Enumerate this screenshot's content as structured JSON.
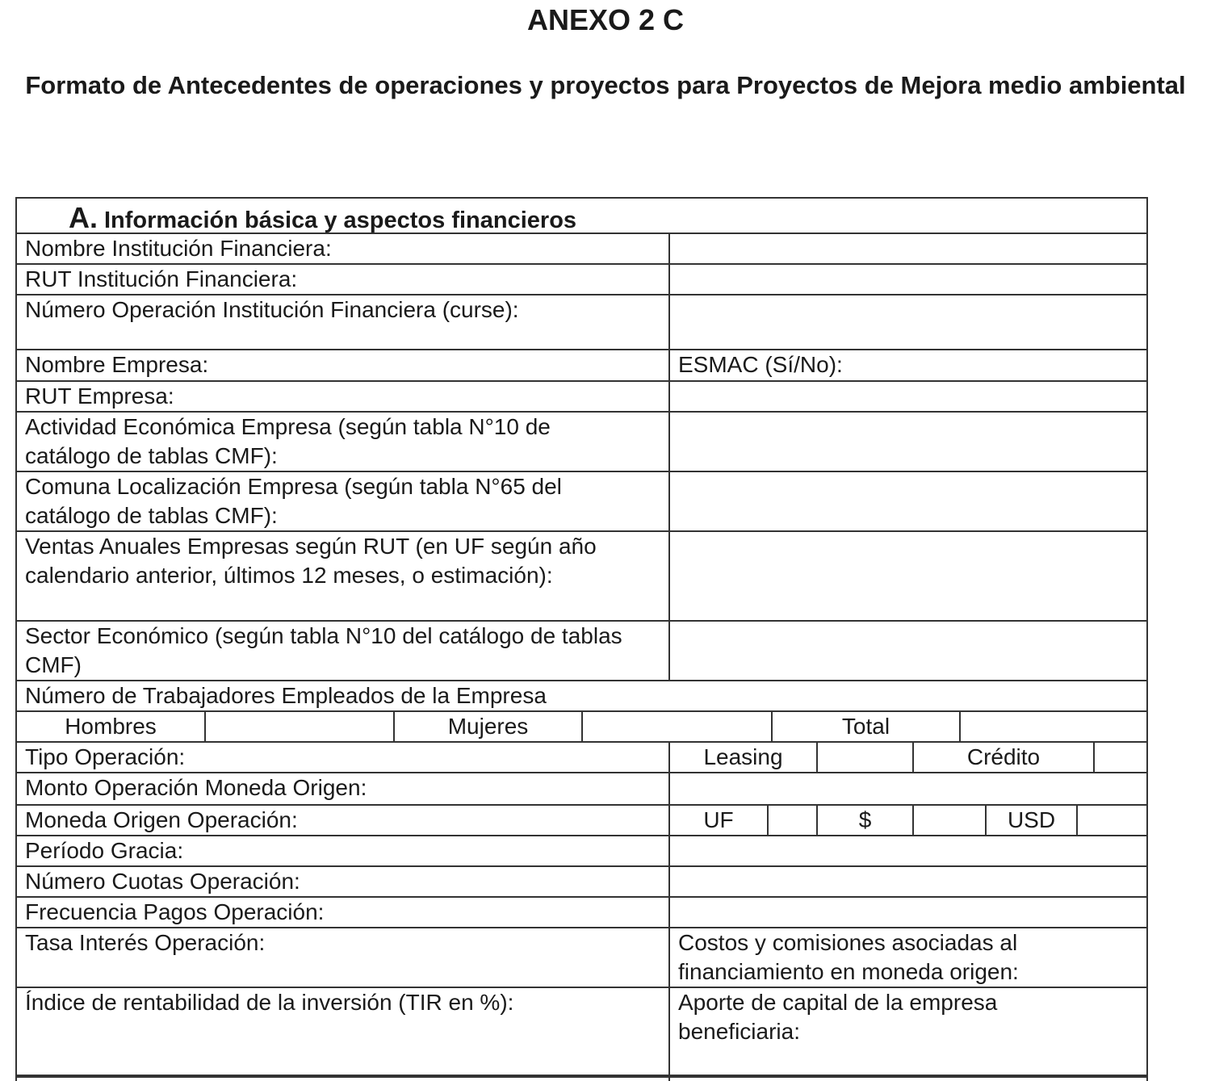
{
  "title": "ANEXO 2 C",
  "subtitle": "Formato de Antecedentes de operaciones y proyectos para Proyectos de Mejora medio ambiental",
  "section": {
    "letter": "A.",
    "title": "Información básica y aspectos financieros"
  },
  "rows": {
    "nombre_if": "Nombre Institución Financiera:",
    "rut_if": "RUT Institución Financiera:",
    "numero_op": "Número Operación Institución Financiera (curse):",
    "nombre_empresa": "Nombre Empresa:",
    "esmac": "ESMAC (Sí/No):",
    "rut_empresa": "RUT Empresa:",
    "actividad": "Actividad Económica Empresa (según tabla N°10 de catálogo de tablas CMF):",
    "comuna": "Comuna Localización Empresa (según tabla N°65 del catálogo de tablas CMF):",
    "ventas": "Ventas Anuales Empresas según RUT (en UF según año calendario anterior, últimos 12 meses, o estimación):",
    "sector": "Sector Económico (según tabla N°10 del catálogo de tablas CMF)",
    "trabajadores": "Número de Trabajadores Empleados de la Empresa",
    "hombres": "Hombres",
    "mujeres": "Mujeres",
    "total": "Total",
    "tipo_op": "Tipo Operación:",
    "leasing": "Leasing",
    "credito": "Crédito",
    "monto": "Monto Operación Moneda Origen:",
    "moneda": "Moneda Origen Operación:",
    "uf": "UF",
    "peso": "$",
    "usd": "USD",
    "gracia": "Período Gracia:",
    "cuotas": "Número Cuotas Operación:",
    "frecuencia": "Frecuencia Pagos Operación:",
    "tasa": "Tasa Interés Operación:",
    "costos": "Costos y comisiones asociadas al financiamiento en moneda origen:",
    "indice": "Índice de rentabilidad de la inversión (TIR en %):",
    "aporte": "Aporte de capital de la empresa beneficiaria:"
  }
}
